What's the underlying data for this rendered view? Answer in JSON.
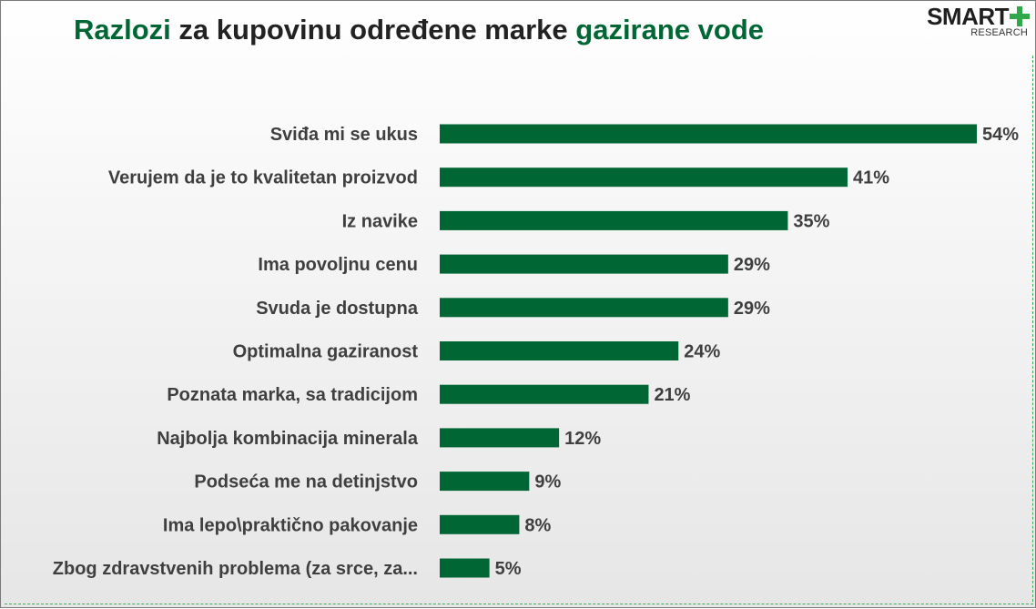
{
  "title": {
    "part1": "Razlozi",
    "part2": " za kupovinu određene marke ",
    "part3": "gazirane vode"
  },
  "logo": {
    "main": "SMART",
    "sub": "RESEARCH",
    "icon": "plus-icon"
  },
  "colors": {
    "bar": "#006633",
    "accent": "#006633",
    "logo_plus": "#2ea84a",
    "label": "#3f3f3f"
  },
  "chart_data": {
    "type": "bar",
    "orientation": "horizontal",
    "title": "Razlozi za kupovinu određene marke gazirane vode",
    "categories": [
      "Sviđa mi se ukus",
      "Verujem da je to kvalitetan proizvod",
      "Iz navike",
      "Ima povoljnu cenu",
      "Svuda je dostupna",
      "Optimalna gaziranost",
      "Poznata marka, sa tradicijom",
      "Najbolja kombinacija minerala",
      "Podseća me na detinjstvo",
      "Ima lepo\\praktično pakovanje",
      "Zbog zdravstvenih problema (za srce, za..."
    ],
    "values": [
      54,
      41,
      35,
      29,
      29,
      24,
      21,
      12,
      9,
      8,
      5
    ],
    "value_labels": [
      "54%",
      "41%",
      "35%",
      "29%",
      "29%",
      "24%",
      "21%",
      "12%",
      "9%",
      "8%",
      "5%"
    ],
    "unit": "%",
    "xlim": [
      0,
      54
    ],
    "grid": false,
    "legend": "none"
  }
}
